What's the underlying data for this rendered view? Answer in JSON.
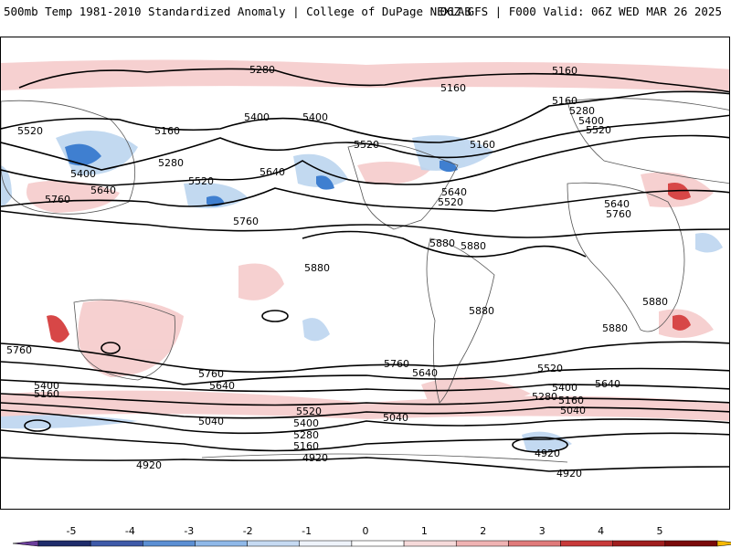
{
  "header": {
    "title": "500mb Temp 1981-2010 Standardized Anomaly | College of DuPage NEXLAB",
    "model_info": "06Z GFS | F000 Valid: 06Z WED MAR 26 2025"
  },
  "contour_labels": [
    {
      "id": "c1",
      "text": "5280"
    },
    {
      "id": "c2",
      "text": "5160"
    },
    {
      "id": "c3",
      "text": "5160"
    },
    {
      "id": "c4",
      "text": "5160"
    },
    {
      "id": "c5",
      "text": "5520"
    },
    {
      "id": "c6",
      "text": "5400"
    },
    {
      "id": "c7",
      "text": "5400"
    },
    {
      "id": "c8",
      "text": "5520"
    },
    {
      "id": "c9",
      "text": "5160"
    },
    {
      "id": "c10",
      "text": "5280"
    },
    {
      "id": "c11",
      "text": "5400"
    },
    {
      "id": "c12",
      "text": "5520"
    },
    {
      "id": "c13",
      "text": "5160"
    },
    {
      "id": "c14",
      "text": "5280"
    },
    {
      "id": "c15",
      "text": "5400"
    },
    {
      "id": "c16",
      "text": "5640"
    },
    {
      "id": "c17",
      "text": "5760"
    },
    {
      "id": "c18",
      "text": "5520"
    },
    {
      "id": "c19",
      "text": "5640"
    },
    {
      "id": "c20",
      "text": "5640"
    },
    {
      "id": "c21",
      "text": "5520"
    },
    {
      "id": "c22",
      "text": "5640"
    },
    {
      "id": "c23",
      "text": "5760"
    },
    {
      "id": "c24",
      "text": "5760"
    },
    {
      "id": "c25",
      "text": "5880"
    },
    {
      "id": "c26",
      "text": "5880"
    },
    {
      "id": "c27",
      "text": "5880"
    },
    {
      "id": "c28",
      "text": "5880"
    },
    {
      "id": "c29",
      "text": "5880"
    },
    {
      "id": "c30",
      "text": "5880"
    },
    {
      "id": "c31",
      "text": "5760"
    },
    {
      "id": "c32",
      "text": "5760"
    },
    {
      "id": "c33",
      "text": "5640"
    },
    {
      "id": "c34",
      "text": "5760"
    },
    {
      "id": "c35",
      "text": "5640"
    },
    {
      "id": "c36",
      "text": "5520"
    },
    {
      "id": "c37",
      "text": "5400"
    },
    {
      "id": "c38",
      "text": "5640"
    },
    {
      "id": "c39",
      "text": "5400"
    },
    {
      "id": "c40",
      "text": "5160"
    },
    {
      "id": "c41",
      "text": "5280"
    },
    {
      "id": "c42",
      "text": "5160"
    },
    {
      "id": "c43",
      "text": "5040"
    },
    {
      "id": "c44",
      "text": "5520"
    },
    {
      "id": "c45",
      "text": "5400"
    },
    {
      "id": "c46",
      "text": "5280"
    },
    {
      "id": "c47",
      "text": "5160"
    },
    {
      "id": "c48",
      "text": "5040"
    },
    {
      "id": "c49",
      "text": "5040"
    },
    {
      "id": "c50",
      "text": "4920"
    },
    {
      "id": "c51",
      "text": "4920"
    },
    {
      "id": "c52",
      "text": "4920"
    },
    {
      "id": "c53",
      "text": "4920"
    }
  ],
  "colorbar": {
    "ticks": [
      "-5",
      "-4",
      "-3",
      "-2",
      "-1",
      "0",
      "1",
      "2",
      "3",
      "4",
      "5"
    ],
    "colors": [
      "#1f2c6b",
      "#3e5aa8",
      "#5b8fd3",
      "#8fb8e8",
      "#c6daf2",
      "#eef3fa",
      "#ffffff",
      "#f6dada",
      "#f0b3b3",
      "#e07a7a",
      "#c83a3a",
      "#a01e1e",
      "#7a0a0a"
    ],
    "end_low": "#6a3d9a",
    "end_high": "#f5b800"
  }
}
